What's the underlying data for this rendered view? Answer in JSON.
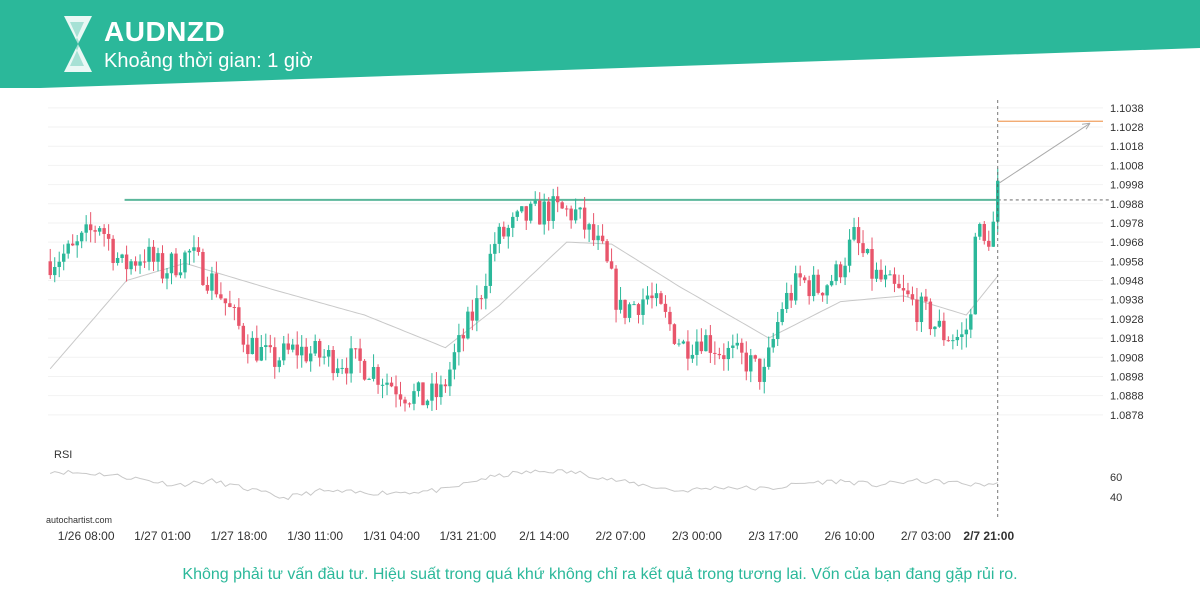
{
  "header": {
    "title": "AUDNZD",
    "subtitle": "Khoảng thời gian: 1 giờ",
    "color": "#2bb89a"
  },
  "footer": {
    "brand": "autochartist.com",
    "disclaimer": "Không phải tư vấn đầu tư. Hiệu suất trong quá khứ không chỉ ra kết quả trong tương lai. Vốn của bạn đang gặp rủi ro."
  },
  "colors": {
    "up": "#2bb89a",
    "down": "#e8556b",
    "resistance": "#5bb79b",
    "target": "#f0a060",
    "ma": "#c8c8c8",
    "rsi": "#c8c8c8"
  },
  "chart_data": {
    "type": "candlestick",
    "symbol": "AUDNZD",
    "interval": "1 giờ",
    "ylim": [
      1.0868,
      1.104
    ],
    "y_ticks": [
      "1.1038",
      "1.1028",
      "1.1018",
      "1.1008",
      "1.0998",
      "1.0988",
      "1.0978",
      "1.0968",
      "1.0958",
      "1.0948",
      "1.0938",
      "1.0928",
      "1.0918",
      "1.0908",
      "1.0898",
      "1.0888",
      "1.0878"
    ],
    "x_ticks": [
      "1/26 08:00",
      "1/27 01:00",
      "1/27 18:00",
      "1/30 11:00",
      "1/31 04:00",
      "1/31 21:00",
      "2/1 14:00",
      "2/2 07:00",
      "2/3 00:00",
      "2/3 17:00",
      "2/6 10:00",
      "2/7 03:00",
      "2/7 21:00"
    ],
    "x_tick_positions": [
      8,
      25,
      42,
      59,
      76,
      93,
      110,
      127,
      144,
      161,
      178,
      195,
      209
    ],
    "candle_count": 212,
    "price_path": [
      [
        0,
        1.0958
      ],
      [
        6,
        1.0963
      ],
      [
        12,
        1.0978
      ],
      [
        17,
        1.0955
      ],
      [
        22,
        1.0962
      ],
      [
        26,
        1.0953
      ],
      [
        32,
        1.0962
      ],
      [
        38,
        1.0945
      ],
      [
        44,
        1.0919
      ],
      [
        50,
        1.0906
      ],
      [
        56,
        1.0912
      ],
      [
        62,
        1.0908
      ],
      [
        68,
        1.0906
      ],
      [
        72,
        1.0903
      ],
      [
        76,
        1.0896
      ],
      [
        80,
        1.089
      ],
      [
        84,
        1.0886
      ],
      [
        88,
        1.0889
      ],
      [
        91,
        1.0908
      ],
      [
        96,
        1.0935
      ],
      [
        100,
        1.0968
      ],
      [
        106,
        1.098
      ],
      [
        112,
        1.0985
      ],
      [
        118,
        1.0983
      ],
      [
        124,
        1.0962
      ],
      [
        128,
        1.0932
      ],
      [
        134,
        1.094
      ],
      [
        138,
        1.0928
      ],
      [
        142,
        1.0914
      ],
      [
        146,
        1.0919
      ],
      [
        150,
        1.0912
      ],
      [
        156,
        1.0906
      ],
      [
        160,
        1.0898
      ],
      [
        164,
        1.0935
      ],
      [
        168,
        1.0948
      ],
      [
        172,
        1.0944
      ],
      [
        176,
        1.0951
      ],
      [
        180,
        1.097
      ],
      [
        184,
        1.0952
      ],
      [
        188,
        1.0944
      ],
      [
        192,
        1.0938
      ],
      [
        196,
        1.093
      ],
      [
        200,
        1.092
      ],
      [
        204,
        1.0918
      ],
      [
        206,
        1.0928
      ],
      [
        207,
        1.0978
      ],
      [
        209,
        1.0966
      ],
      [
        212,
        1.0982
      ],
      [
        215,
        1.0989
      ],
      [
        216,
        1.1
      ]
    ],
    "resistance_level": 1.099,
    "resistance_start_index": 17,
    "target_level": 1.1031,
    "ma_path": [
      [
        0,
        1.0902
      ],
      [
        17,
        1.0948
      ],
      [
        30,
        1.0957
      ],
      [
        50,
        1.0943
      ],
      [
        70,
        1.093
      ],
      [
        88,
        1.0913
      ],
      [
        100,
        1.0935
      ],
      [
        115,
        1.0968
      ],
      [
        125,
        1.0967
      ],
      [
        140,
        1.0945
      ],
      [
        160,
        1.0918
      ],
      [
        176,
        1.0937
      ],
      [
        190,
        1.094
      ],
      [
        204,
        1.093
      ],
      [
        216,
        1.0965
      ]
    ],
    "rsi": {
      "label": "RSI",
      "y_ticks": [
        "60",
        "40"
      ],
      "ylim": [
        25,
        75
      ],
      "path": [
        [
          0,
          66
        ],
        [
          6,
          64
        ],
        [
          12,
          63
        ],
        [
          20,
          58
        ],
        [
          28,
          52
        ],
        [
          36,
          56
        ],
        [
          44,
          48
        ],
        [
          52,
          39
        ],
        [
          60,
          46
        ],
        [
          70,
          44
        ],
        [
          80,
          45
        ],
        [
          88,
          47
        ],
        [
          96,
          58
        ],
        [
          104,
          64
        ],
        [
          112,
          66
        ],
        [
          118,
          64
        ],
        [
          124,
          58
        ],
        [
          132,
          52
        ],
        [
          140,
          46
        ],
        [
          150,
          50
        ],
        [
          160,
          48
        ],
        [
          168,
          54
        ],
        [
          176,
          56
        ],
        [
          184,
          52
        ],
        [
          192,
          56
        ],
        [
          200,
          55
        ],
        [
          206,
          52
        ],
        [
          212,
          54
        ],
        [
          216,
          58
        ]
      ]
    }
  }
}
